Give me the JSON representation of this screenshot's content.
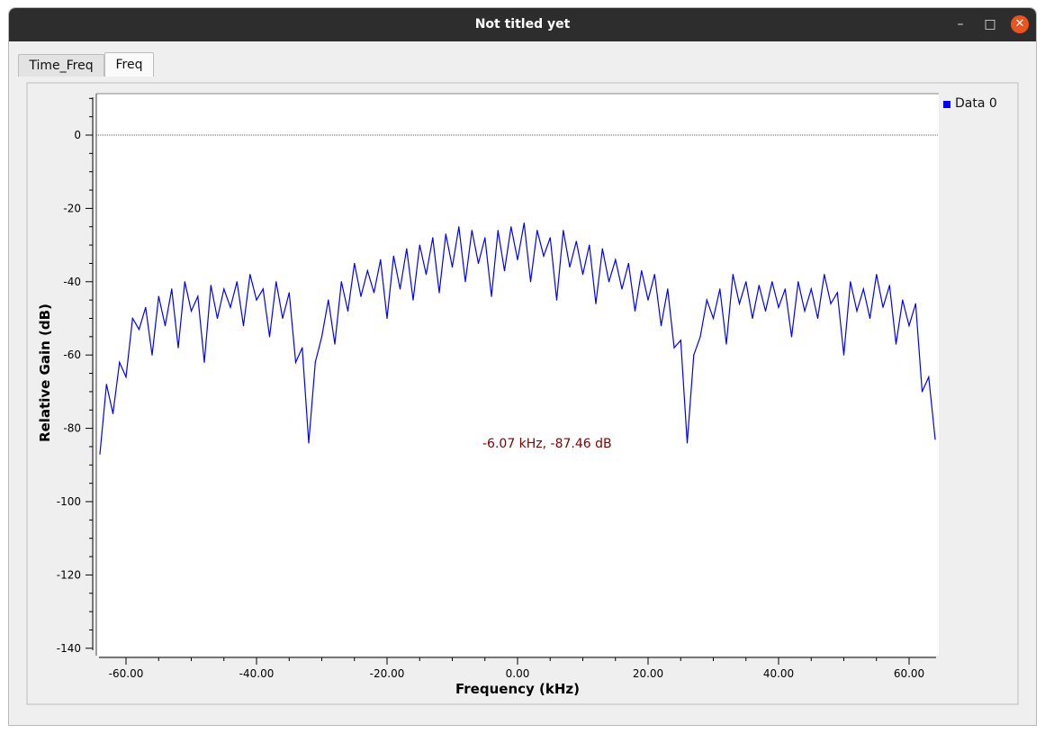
{
  "window": {
    "title": "Not titled yet",
    "minimize_glyph": "–",
    "maximize_glyph": "□",
    "close_glyph": "✕"
  },
  "tabs": [
    {
      "label": "Time_Freq",
      "active": false
    },
    {
      "label": "Freq",
      "active": true
    }
  ],
  "legend": {
    "entries": [
      {
        "label": "Data 0",
        "color": "#0000ff"
      }
    ]
  },
  "readout": "-6.07 kHz, -87.46 dB",
  "chart_data": {
    "type": "line",
    "title": "",
    "xlabel": "Frequency (kHz)",
    "ylabel": "Relative Gain (dB)",
    "xlim": [
      -64,
      64
    ],
    "ylim": [
      -140,
      10
    ],
    "x_ticks": [
      -60,
      -40,
      -20,
      0,
      20,
      40,
      60
    ],
    "x_tick_labels": [
      "-60.00",
      "-40.00",
      "-20.00",
      "0.00",
      "20.00",
      "40.00",
      "60.00"
    ],
    "y_ticks": [
      0,
      -20,
      -40,
      -60,
      -80,
      -100,
      -120,
      -140
    ],
    "y_tick_labels": [
      "0",
      "-20",
      "-40",
      "-60",
      "-80",
      "-100",
      "-120",
      "-140"
    ],
    "reference_line": {
      "y": 0,
      "color": "#008080",
      "style": "dotted"
    },
    "series": [
      {
        "name": "Data 0",
        "color": "#0000ff",
        "x": [
          -64,
          -63,
          -62,
          -61,
          -60,
          -59,
          -58,
          -57,
          -56,
          -55,
          -54,
          -53,
          -52,
          -51,
          -50,
          -49,
          -48,
          -47,
          -46,
          -45,
          -44,
          -43,
          -42,
          -41,
          -40,
          -39,
          -38,
          -37,
          -36,
          -35,
          -34,
          -33,
          -32,
          -31,
          -30,
          -29,
          -28,
          -27,
          -26,
          -25,
          -24,
          -23,
          -22,
          -21,
          -20,
          -19,
          -18,
          -17,
          -16,
          -15,
          -14,
          -13,
          -12,
          -11,
          -10,
          -9,
          -8,
          -7,
          -6,
          -5,
          -4,
          -3,
          -2,
          -1,
          0,
          1,
          2,
          3,
          4,
          5,
          6,
          7,
          8,
          9,
          10,
          11,
          12,
          13,
          14,
          15,
          16,
          17,
          18,
          19,
          20,
          21,
          22,
          23,
          24,
          25,
          26,
          27,
          28,
          29,
          30,
          31,
          32,
          33,
          34,
          35,
          36,
          37,
          38,
          39,
          40,
          41,
          42,
          43,
          44,
          45,
          46,
          47,
          48,
          49,
          50,
          51,
          52,
          53,
          54,
          55,
          56,
          57,
          58,
          59,
          60,
          61,
          62,
          63,
          64
        ],
        "y": [
          -87,
          -68,
          -76,
          -62,
          -66,
          -50,
          -53,
          -47,
          -60,
          -44,
          -52,
          -42,
          -58,
          -40,
          -48,
          -44,
          -62,
          -41,
          -50,
          -42,
          -47,
          -40,
          -52,
          -38,
          -45,
          -42,
          -55,
          -40,
          -50,
          -43,
          -62,
          -58,
          -84,
          -62,
          -55,
          -45,
          -57,
          -40,
          -48,
          -35,
          -44,
          -37,
          -43,
          -34,
          -50,
          -33,
          -42,
          -31,
          -45,
          -30,
          -38,
          -28,
          -43,
          -27,
          -36,
          -25,
          -40,
          -26,
          -35,
          -28,
          -44,
          -26,
          -37,
          -25,
          -34,
          -24,
          -40,
          -26,
          -33,
          -28,
          -45,
          -26,
          -36,
          -29,
          -38,
          -30,
          -46,
          -31,
          -40,
          -34,
          -42,
          -35,
          -48,
          -37,
          -45,
          -38,
          -52,
          -42,
          -58,
          -56,
          -84,
          -60,
          -55,
          -45,
          -50,
          -42,
          -57,
          -38,
          -46,
          -40,
          -50,
          -41,
          -48,
          -40,
          -47,
          -42,
          -55,
          -40,
          -48,
          -42,
          -50,
          -38,
          -46,
          -43,
          -60,
          -40,
          -48,
          -42,
          -50,
          -38,
          -47,
          -41,
          -57,
          -45,
          -52,
          -46,
          -70,
          -66,
          -83
        ]
      }
    ]
  }
}
